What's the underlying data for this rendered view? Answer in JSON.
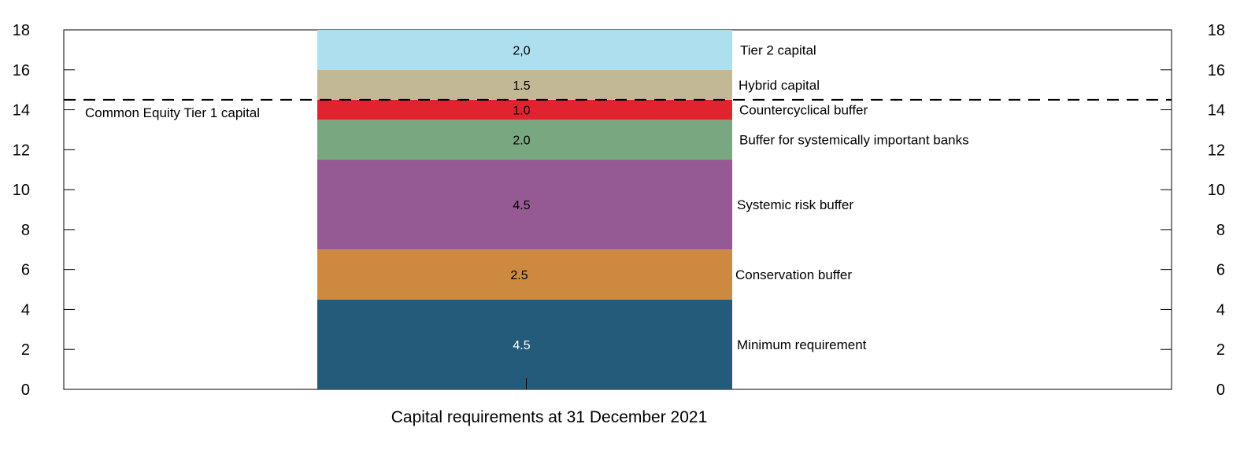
{
  "chart_data": {
    "type": "bar",
    "stacked": true,
    "categories": [
      "Capital requirements at 31 December 2021"
    ],
    "ylim": [
      0,
      18
    ],
    "yticks": [
      0,
      2,
      4,
      6,
      8,
      10,
      12,
      14,
      16,
      18
    ],
    "grid": false,
    "secondary_axis": true,
    "series": [
      {
        "name": "Minimum requirement",
        "value": 4.5,
        "label": "4.5",
        "color": "#245a7a",
        "label_color": "#ffffff"
      },
      {
        "name": "Conservation buffer",
        "value": 2.5,
        "label": "2.5",
        "color": "#cd893f",
        "label_color": "#000000"
      },
      {
        "name": "Systemic risk buffer",
        "value": 4.5,
        "label": "4.5",
        "color": "#955a94",
        "label_color": "#000000"
      },
      {
        "name": "Buffer for systemically important banks",
        "value": 2.0,
        "label": "2.0",
        "color": "#79a77f",
        "label_color": "#000000"
      },
      {
        "name": "Countercyclical buffer",
        "value": 1.0,
        "label": "1.0",
        "color": "#e0232e",
        "label_color": "#000000"
      },
      {
        "name": "Hybrid capital",
        "value": 1.5,
        "label": "1.5",
        "color": "#c3b896",
        "label_color": "#000000"
      },
      {
        "name": "Tier 2 capital",
        "value": 2.0,
        "label": "2,0",
        "color": "#aedfef",
        "label_color": "#000000"
      }
    ],
    "reference_line": {
      "label": "Common Equity Tier 1 capital",
      "value": 14.5,
      "style": "dashed"
    }
  }
}
